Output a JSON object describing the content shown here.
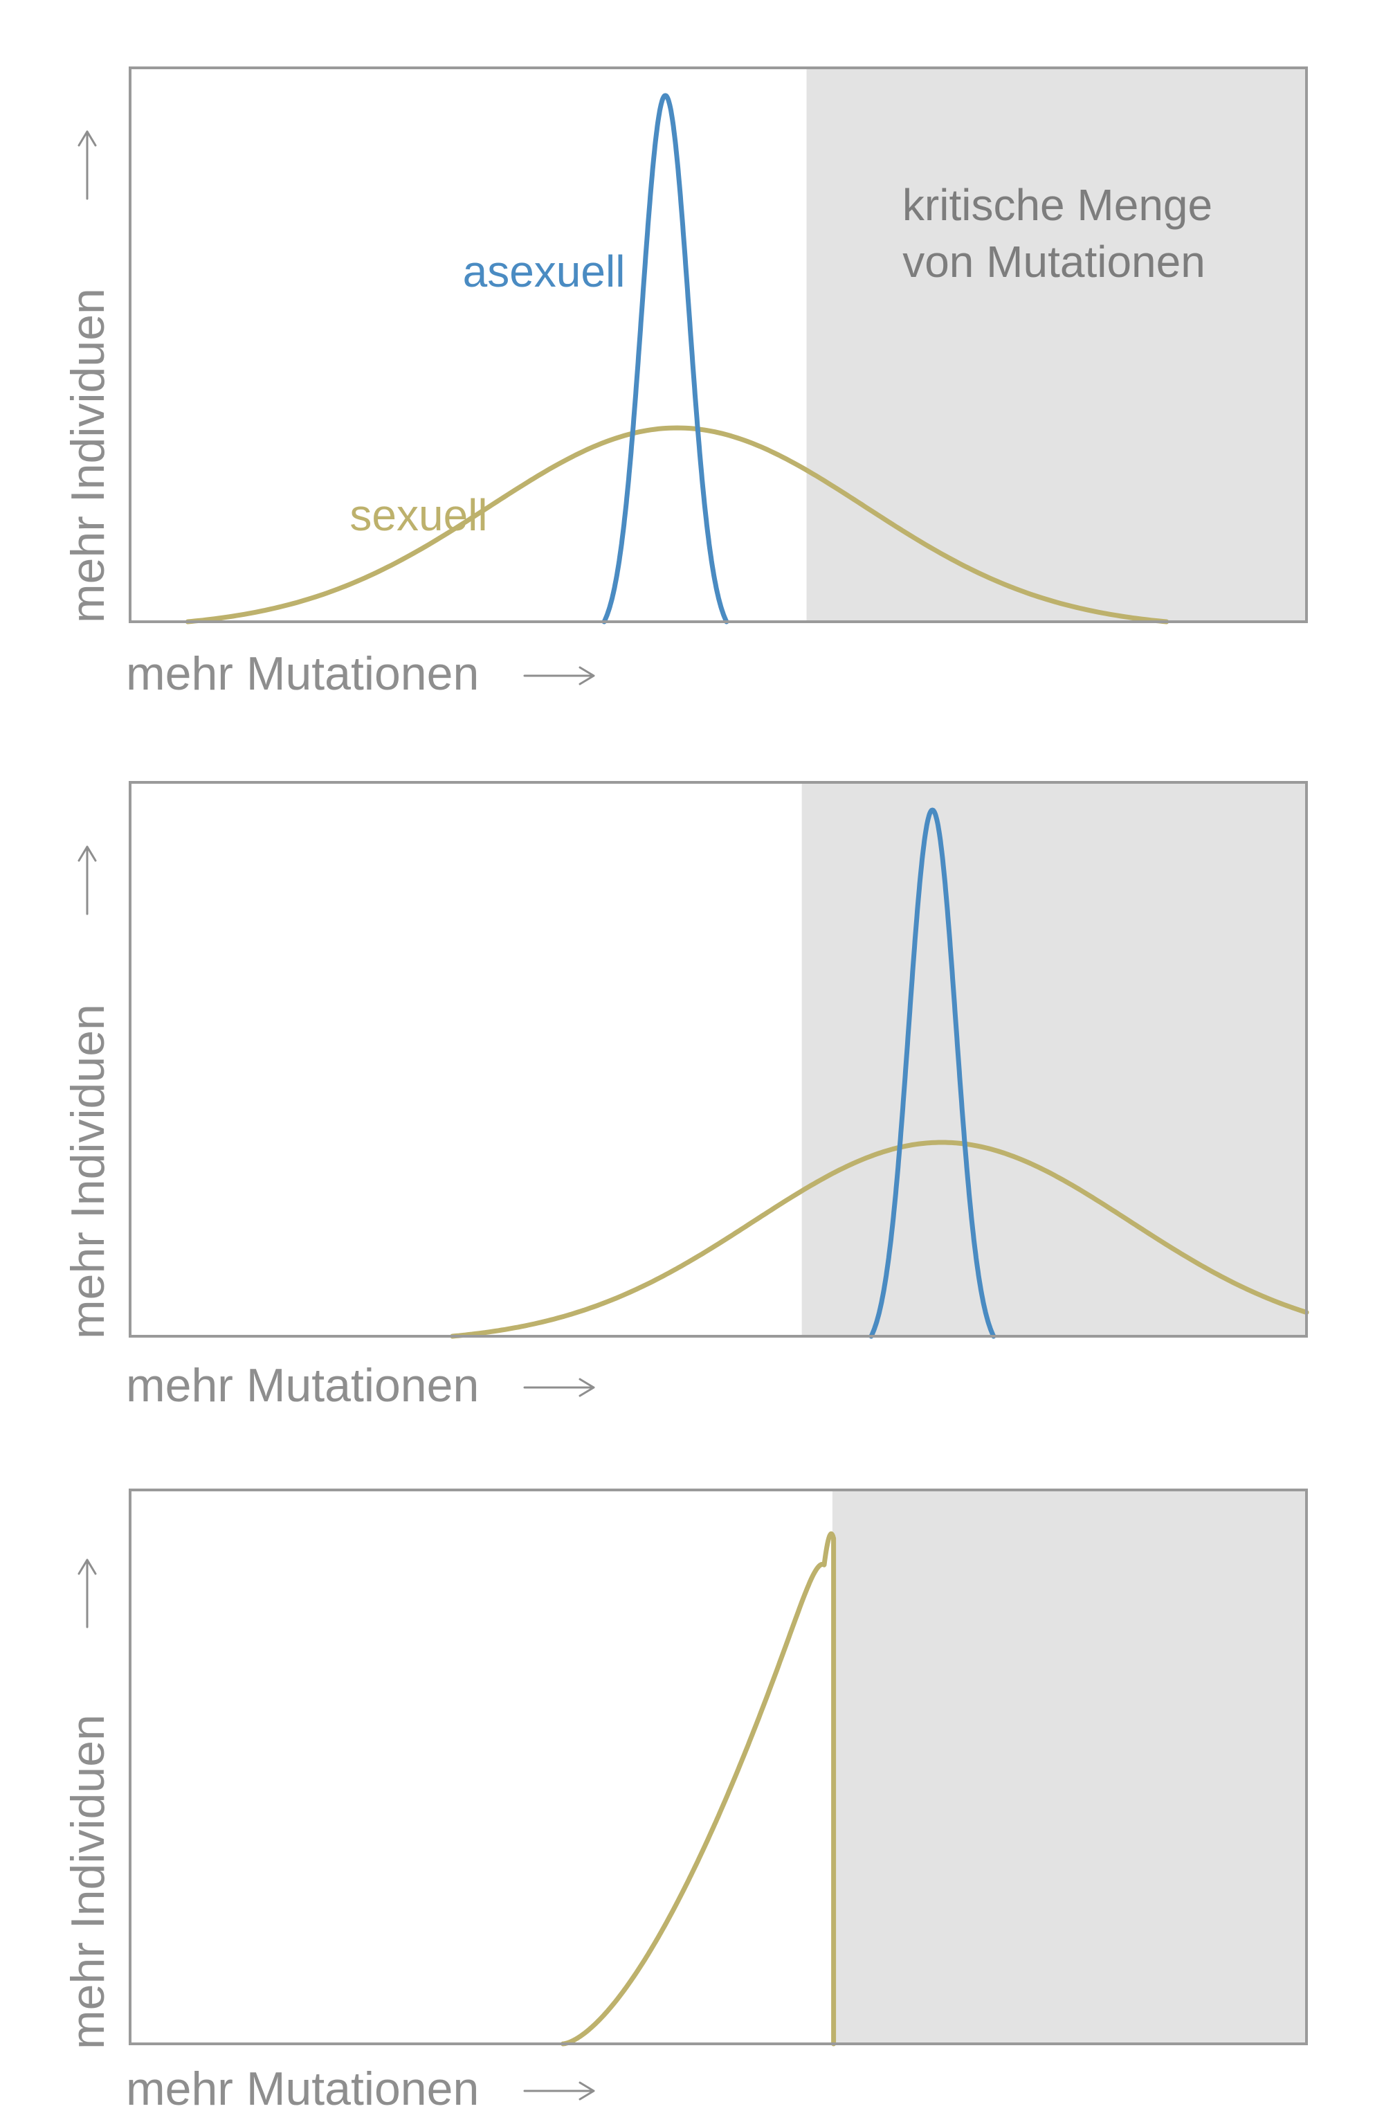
{
  "colors": {
    "asexual": "#4a8bc2",
    "sexual": "#bdb16c",
    "critical_zone": "#e3e3e3",
    "axis_text": "#8e8e8e",
    "frame": "#9a9a9a"
  },
  "labels": {
    "asexual": "asexuell",
    "sexual": "sexuell",
    "critical_line1": "kritische Menge",
    "critical_line2": "von Mutationen"
  },
  "panels": [
    {
      "xlabel": "mehr Mutationen",
      "ylabel": "mehr Individuen",
      "x_arrow_icon": "right-arrow-icon",
      "y_arrow_icon": "up-arrow-icon",
      "critical_from": 0.575,
      "curves": [
        {
          "series": "sexual",
          "shape": "bell",
          "center": 0.465,
          "width": 0.16,
          "height": 0.35
        },
        {
          "series": "asexual",
          "shape": "bell",
          "center": 0.455,
          "width": 0.02,
          "height": 0.95
        }
      ]
    },
    {
      "xlabel": "mehr Mutationen",
      "ylabel": "mehr Individuen",
      "x_arrow_icon": "right-arrow-icon",
      "y_arrow_icon": "up-arrow-icon",
      "critical_from": 0.571,
      "curves": [
        {
          "series": "sexual",
          "shape": "bell",
          "center": 0.69,
          "width": 0.16,
          "height": 0.35
        },
        {
          "series": "asexual",
          "shape": "bell",
          "center": 0.682,
          "width": 0.02,
          "height": 0.95
        }
      ]
    },
    {
      "xlabel": "mehr Mutationen",
      "ylabel": "mehr Individuen",
      "x_arrow_icon": "right-arrow-icon",
      "y_arrow_icon": "up-arrow-icon",
      "critical_from": 0.597,
      "curves": [
        {
          "series": "sexual",
          "shape": "truncated",
          "start": 0.368,
          "peak": 0.59,
          "height": 0.92
        }
      ]
    }
  ]
}
